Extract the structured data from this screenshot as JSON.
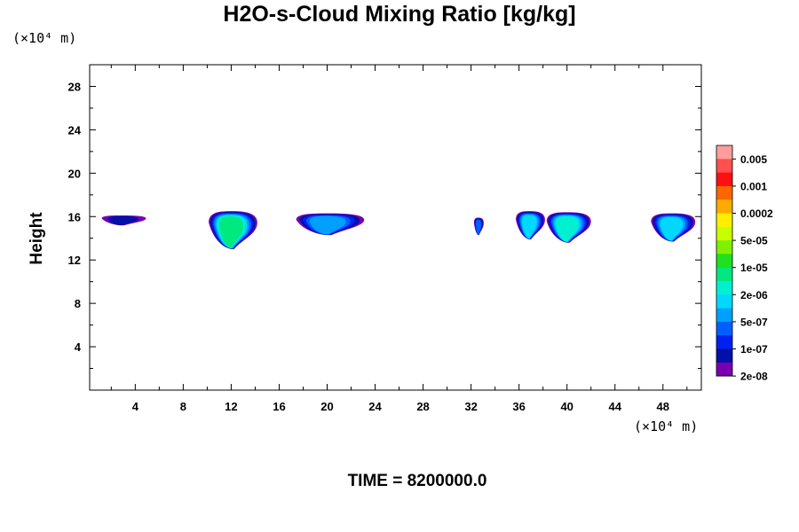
{
  "chart_data": {
    "type": "contour",
    "title": "H2O-s-Cloud Mixing Ratio [kg/kg]",
    "ylabel": "Height",
    "y_unit": "(×10⁴ m)",
    "x_unit": "(×10⁴ m)",
    "footer": "TIME = 8200000.0",
    "xlim": [
      0.2,
      51.2
    ],
    "ylim": [
      0,
      30
    ],
    "xticks": [
      4,
      8,
      12,
      16,
      20,
      24,
      28,
      32,
      36,
      40,
      44,
      48
    ],
    "yticks": [
      4,
      8,
      12,
      16,
      20,
      24,
      28
    ],
    "colorbar": {
      "labels": [
        "0.005",
        "0.001",
        "0.0002",
        "5e-05",
        "1e-05",
        "2e-06",
        "5e-07",
        "1e-07",
        "2e-08"
      ],
      "colors": [
        "#ff9c9c",
        "#ff4f4f",
        "#ff1010",
        "#ff6600",
        "#ffaa00",
        "#ffee00",
        "#c8ff00",
        "#80f000",
        "#20e020",
        "#00e880",
        "#00f0d0",
        "#00d8ff",
        "#00a0ff",
        "#0060ff",
        "#0020f0",
        "#0010a8",
        "#7800b0"
      ]
    },
    "clouds": [
      {
        "x_min": 1.0,
        "x_max": 5.1,
        "y_bottom": 15.2,
        "y_top": 16.1,
        "max_level": 1
      },
      {
        "x_min": 9.9,
        "x_max": 14.4,
        "y_bottom": 13.0,
        "y_top": 16.5,
        "max_level": 7
      },
      {
        "x_min": 17.1,
        "x_max": 23.4,
        "y_bottom": 14.3,
        "y_top": 16.3,
        "max_level": 4
      },
      {
        "x_min": 32.2,
        "x_max": 33.1,
        "y_bottom": 14.3,
        "y_top": 15.9,
        "max_level": 3
      },
      {
        "x_min": 35.6,
        "x_max": 38.3,
        "y_bottom": 13.9,
        "y_top": 16.5,
        "max_level": 5
      },
      {
        "x_min": 38.1,
        "x_max": 42.2,
        "y_bottom": 13.6,
        "y_top": 16.4,
        "max_level": 6
      },
      {
        "x_min": 46.8,
        "x_max": 50.9,
        "y_bottom": 13.7,
        "y_top": 16.3,
        "max_level": 5
      }
    ]
  }
}
